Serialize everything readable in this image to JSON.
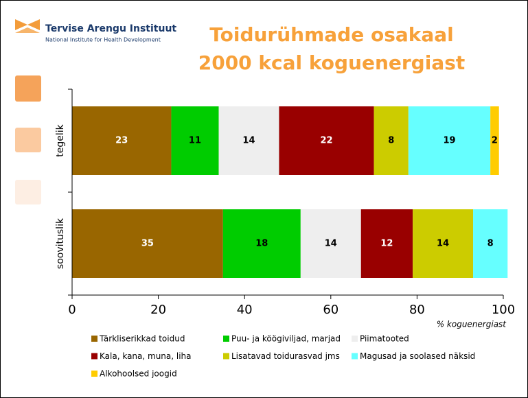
{
  "logo": {
    "name": "Tervise Arengu Instituut",
    "subtitle": "National Institute for Health Development"
  },
  "chart_data": {
    "type": "stacked-barh",
    "title": "Toidurühmade osakaal",
    "subtitle": "2000 kcal koguenergiast",
    "x_label": "% koguenergiast",
    "categories": [
      "tegelik",
      "soovituslik"
    ],
    "series": [
      {
        "name": "Tärkliserikkad toidud",
        "color": "#996600",
        "values": [
          23,
          35
        ]
      },
      {
        "name": "Puu- ja köögiviljad, marjad",
        "color": "#00cc00",
        "values": [
          11,
          18
        ]
      },
      {
        "name": "Piimatooted",
        "color": "#eeeeee",
        "values": [
          14,
          14
        ]
      },
      {
        "name": "Kala, kana, muna, liha",
        "color": "#990000",
        "values": [
          22,
          12
        ]
      },
      {
        "name": "Lisatavad toidurasvad jms",
        "color": "#cccc00",
        "values": [
          8,
          14
        ]
      },
      {
        "name": "Magusad ja soolased näksid",
        "color": "#66ffff",
        "values": [
          19,
          8
        ]
      },
      {
        "name": "Alkohoolsed joogid",
        "color": "#ffcc00",
        "values": [
          2,
          null
        ]
      }
    ],
    "xlim": [
      0,
      100
    ],
    "xticks": [
      0,
      20,
      40,
      60,
      80,
      100
    ],
    "grid": false
  }
}
